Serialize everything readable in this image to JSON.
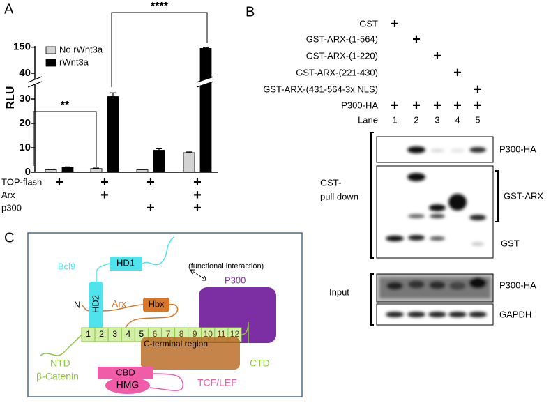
{
  "chart_data": {
    "type": "bar",
    "panel_label": "A",
    "y_label": "RLU",
    "categories": [
      null,
      null,
      null,
      null
    ],
    "series": [
      {
        "name": "No rWnt3a",
        "color": "#d3d3d3",
        "values": [
          1,
          1.5,
          1,
          8
        ],
        "errors": [
          0.2,
          0.2,
          0.2,
          0.3
        ]
      },
      {
        "name": "rWnt3a",
        "color": "#000000",
        "values": [
          2,
          31,
          9,
          145
        ],
        "errors": [
          0.2,
          1.5,
          0.6,
          2
        ]
      }
    ],
    "ylim": [
      0,
      155
    ],
    "ybreak": [
      34,
      40
    ],
    "yticks": [
      0,
      10,
      20,
      30,
      40,
      150
    ],
    "conditions": [
      {
        "label": "TOP-flash",
        "present": [
          true,
          true,
          true,
          true
        ]
      },
      {
        "label": "Arx",
        "present": [
          false,
          true,
          false,
          true
        ]
      },
      {
        "label": "p300",
        "present": [
          false,
          false,
          true,
          true
        ]
      }
    ],
    "condition_symbol": "+",
    "annotations": [
      "**",
      "****"
    ]
  },
  "panel_b": {
    "panel_label": "B",
    "constructs": [
      "GST",
      "GST-ARX-(1-564)",
      "GST-ARX-(1-220)",
      "GST-ARX-(221-430)",
      "GST-ARX-(431-564-3x NLS)"
    ],
    "cotransfected": "P300-HA",
    "lane_title": "Lane",
    "lanes": [
      "1",
      "2",
      "3",
      "4",
      "5"
    ],
    "symbol": "+",
    "pulldown_label": [
      "GST-",
      "pull down"
    ],
    "pulldown_blots": [
      "P300-HA",
      "GST-ARX",
      "GST"
    ],
    "input_label": "Input",
    "input_blots": [
      "P300-HA",
      "GAPDH"
    ]
  },
  "panel_c": {
    "panel_label": "C",
    "bcl9": "Bcl9",
    "hd1": "HD1",
    "hd2": "HD2",
    "interaction": "(functional interaction)",
    "p300": "P300",
    "n_terminus": "N",
    "arx": "Arx",
    "hbx": "Hbx",
    "c_terminal": "C-terminal region",
    "repeats": [
      "1",
      "2",
      "3",
      "4",
      "5",
      "6",
      "7",
      "8",
      "9",
      "10",
      "11",
      "12"
    ],
    "ntd": "NTD",
    "ctd": "CTD",
    "beta_catenin": "β-Catenin",
    "cbd": "CBD",
    "tcf_lef": "TCF/LEF",
    "hmg": "HMG"
  }
}
